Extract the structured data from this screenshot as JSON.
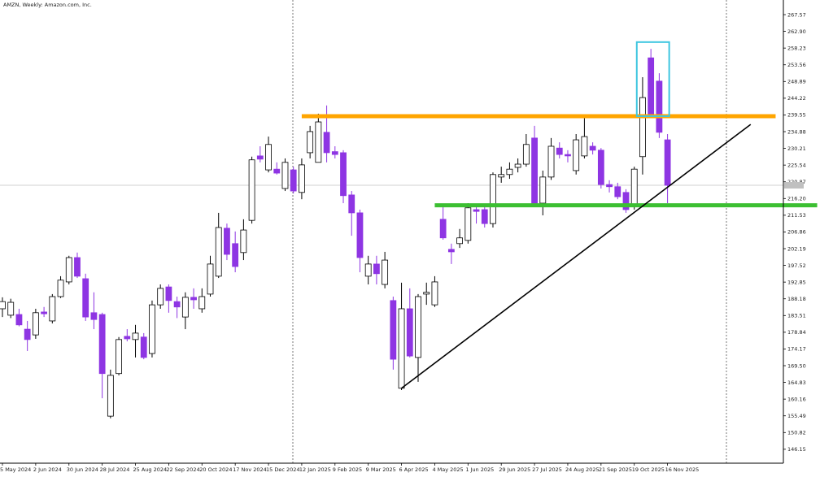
{
  "chart_data": {
    "type": "candlestick",
    "title": "AMZN, Weekly:  Amazon.com, Inc.",
    "categories": [
      "5 May 2024",
      null,
      null,
      null,
      "2 Jun 2024",
      null,
      null,
      null,
      "30 Jun 2024",
      null,
      null,
      null,
      "28 Jul 2024",
      null,
      null,
      null,
      "25 Aug 2024",
      null,
      null,
      null,
      "22 Sep 2024",
      null,
      null,
      null,
      "20 Oct 2024",
      null,
      null,
      null,
      "17 Nov 2024",
      null,
      null,
      null,
      "15 Dec 2024",
      null,
      null,
      null,
      "12 Jan 2025",
      null,
      null,
      null,
      "9 Feb 2025",
      null,
      null,
      null,
      "9 Mar 2025",
      null,
      null,
      null,
      "6 Apr 2025",
      null,
      null,
      null,
      "4 May 2025",
      null,
      null,
      null,
      "1 Jun 2025",
      null,
      null,
      null,
      "29 Jun 2025",
      null,
      null,
      null,
      "27 Jul 2025",
      null,
      null,
      null,
      "24 Aug 2025",
      null,
      null,
      null,
      "21 Sep 2025",
      null,
      null,
      null,
      "19 Oct 2025",
      null,
      null,
      null,
      "16 Nov 2025"
    ],
    "open": [
      185.4,
      183.6,
      183.8,
      179.7,
      178.1,
      184.5,
      182.0,
      188.8,
      192.9,
      199.7,
      193.8,
      184.3,
      183.8,
      155.4,
      167.3,
      177.7,
      176.8,
      177.5,
      172.9,
      186.5,
      191.5,
      187.4,
      183.1,
      188.6,
      185.4,
      189.5,
      194.5,
      207.9,
      203.6,
      201.1,
      210.1,
      228.1,
      224.2,
      224.4,
      219.0,
      224.2,
      217.9,
      229.0,
      226.3,
      234.7,
      229.3,
      229.0,
      217.2,
      212.2,
      194.5,
      197.9,
      192.2,
      187.7,
      163.2,
      185.4,
      171.8,
      189.5,
      186.5,
      210.4,
      202.0,
      203.6,
      204.5,
      213.1,
      213.1,
      209.2,
      222.2,
      222.9,
      224.9,
      225.8,
      233.1,
      214.9,
      222.2,
      230.3,
      228.5,
      224.0,
      228.1,
      230.8,
      229.7,
      220.1,
      219.5,
      217.9,
      214.5,
      227.9,
      255.5,
      249.0,
      232.6
    ],
    "high": [
      188.6,
      188.2,
      185.4,
      182.0,
      185.4,
      185.9,
      189.5,
      194.5,
      200.2,
      201.1,
      195.2,
      190.0,
      184.3,
      168.4,
      177.5,
      179.7,
      180.9,
      178.6,
      187.7,
      192.2,
      192.2,
      188.8,
      190.0,
      191.1,
      191.1,
      200.2,
      212.2,
      209.2,
      207.0,
      210.4,
      227.9,
      230.8,
      233.5,
      226.3,
      227.4,
      225.1,
      227.4,
      236.5,
      239.9,
      242.2,
      230.8,
      229.7,
      218.3,
      213.1,
      200.2,
      200.2,
      201.3,
      188.8,
      192.7,
      191.1,
      189.5,
      192.7,
      194.5,
      213.8,
      203.6,
      207.7,
      214.9,
      214.5,
      214.5,
      223.5,
      225.1,
      226.3,
      227.4,
      234.2,
      236.5,
      224.0,
      233.1,
      231.9,
      229.7,
      234.2,
      238.7,
      231.9,
      230.3,
      221.3,
      220.6,
      218.8,
      225.1,
      250.1,
      258.0,
      251.2,
      234.2
    ],
    "low": [
      183.1,
      182.8,
      180.5,
      173.6,
      177.0,
      183.1,
      181.3,
      188.4,
      192.2,
      194.0,
      182.0,
      179.7,
      160.4,
      154.8,
      166.8,
      176.3,
      171.8,
      171.3,
      171.8,
      185.4,
      184.3,
      182.8,
      179.7,
      185.4,
      184.3,
      188.8,
      194.0,
      199.0,
      195.6,
      199.0,
      209.2,
      226.3,
      223.5,
      222.9,
      218.3,
      217.6,
      216.0,
      227.4,
      226.3,
      226.3,
      227.4,
      214.9,
      205.8,
      195.6,
      192.2,
      192.2,
      191.1,
      168.4,
      162.7,
      171.8,
      165.0,
      186.5,
      185.9,
      204.7,
      197.9,
      202.4,
      203.6,
      209.2,
      208.1,
      208.1,
      220.6,
      221.7,
      223.5,
      225.1,
      213.8,
      211.5,
      221.4,
      227.4,
      226.3,
      222.9,
      227.4,
      228.5,
      219.0,
      217.9,
      216.0,
      212.2,
      213.1,
      222.9,
      238.7,
      233.1,
      214.9
    ],
    "close": [
      187.4,
      187.2,
      180.9,
      176.8,
      184.3,
      184.0,
      188.8,
      193.4,
      199.7,
      194.5,
      183.1,
      182.4,
      167.3,
      166.8,
      176.8,
      177.0,
      178.6,
      171.8,
      186.5,
      191.1,
      187.7,
      185.9,
      188.6,
      187.9,
      188.8,
      197.9,
      208.1,
      200.6,
      197.2,
      207.4,
      227.0,
      227.2,
      231.3,
      223.3,
      226.3,
      218.3,
      225.6,
      234.9,
      237.6,
      229.0,
      228.5,
      217.0,
      212.2,
      199.7,
      197.9,
      195.2,
      199.0,
      171.3,
      185.4,
      172.2,
      188.8,
      190.0,
      192.9,
      205.2,
      201.3,
      205.2,
      213.6,
      212.6,
      209.2,
      222.9,
      222.9,
      224.4,
      225.8,
      231.3,
      214.9,
      222.2,
      230.8,
      228.5,
      228.1,
      232.6,
      233.5,
      229.7,
      220.1,
      219.5,
      216.7,
      213.1,
      224.4,
      244.4,
      239.2,
      234.7,
      219.9
    ],
    "up_color": "#ffffff",
    "down_color": "#8e35e3",
    "ylim": [
      142.26,
      271.66
    ],
    "yticks": [
      267.57,
      {
        "value": 262.9,
        "label": "262.90"
      },
      258.23,
      253.56,
      248.89,
      244.22,
      239.55,
      234.88,
      230.21,
      225.54,
      220.87,
      {
        "value": 216.2,
        "label": "216.20"
      },
      211.53,
      206.86,
      202.19,
      197.52,
      192.85,
      188.18,
      183.51,
      178.84,
      174.17,
      {
        "value": 169.5,
        "label": "169.50"
      },
      164.83,
      160.16,
      155.49,
      150.82,
      146.15
    ],
    "levels": [
      {
        "value": 239.2,
        "from": 36,
        "to": 93,
        "color": "#ffa500"
      },
      {
        "value": 214.3,
        "from": 52,
        "to": 98,
        "color": "#3cbf32"
      }
    ],
    "trendline": {
      "x": [
        48,
        90
      ],
      "y": [
        163.2,
        236.9
      ],
      "color": "#000000"
    },
    "highlight": {
      "x": [
        76.3,
        80.2
      ],
      "y": [
        239.2,
        259.9
      ],
      "color": "#3ec6e0"
    }
  }
}
